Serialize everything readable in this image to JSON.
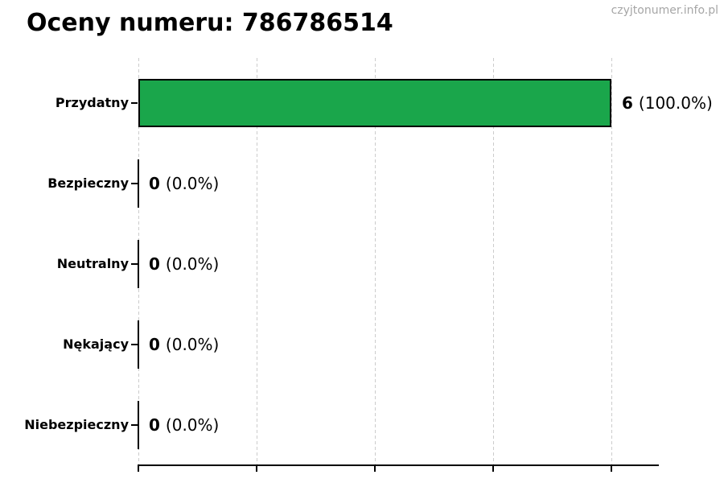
{
  "header": {
    "title": "Oceny numeru: 786786514",
    "watermark": "czyjtonumer.info.pl"
  },
  "chart_data": {
    "type": "bar",
    "orientation": "horizontal",
    "title": "Oceny numeru: 786786514",
    "categories": [
      "Przydatny",
      "Bezpieczny",
      "Neutralny",
      "Nękający",
      "Niebezpieczny"
    ],
    "values": [
      6,
      0,
      0,
      0,
      0
    ],
    "percent_labels": [
      "(100.0%)",
      "(0.0%)",
      "(0.0%)",
      "(0.0%)",
      "(0.0%)"
    ],
    "value_label_texts": [
      "6 (100.0%)",
      "0 (0.0%)",
      "0 (0.0%)",
      "0 (0.0%)",
      "0 (0.0%)"
    ],
    "total_ratings": 6,
    "xlabel": "",
    "ylabel": "",
    "xlim": [
      0,
      6.6
    ],
    "x_ticks": [
      0,
      1.5,
      3,
      4.5,
      6
    ],
    "x_tick_labels_visible": false,
    "grid": "vertical-dashed",
    "legend_position": "none"
  },
  "colors": {
    "background": "#ffffff",
    "bar_fill": "#1aa64b",
    "bar_edge": "#000000",
    "zero_bar": "#000000",
    "grid": "#cccccc",
    "axis": "#000000",
    "title_text": "#000000",
    "watermark_text": "#a6a6a6"
  }
}
